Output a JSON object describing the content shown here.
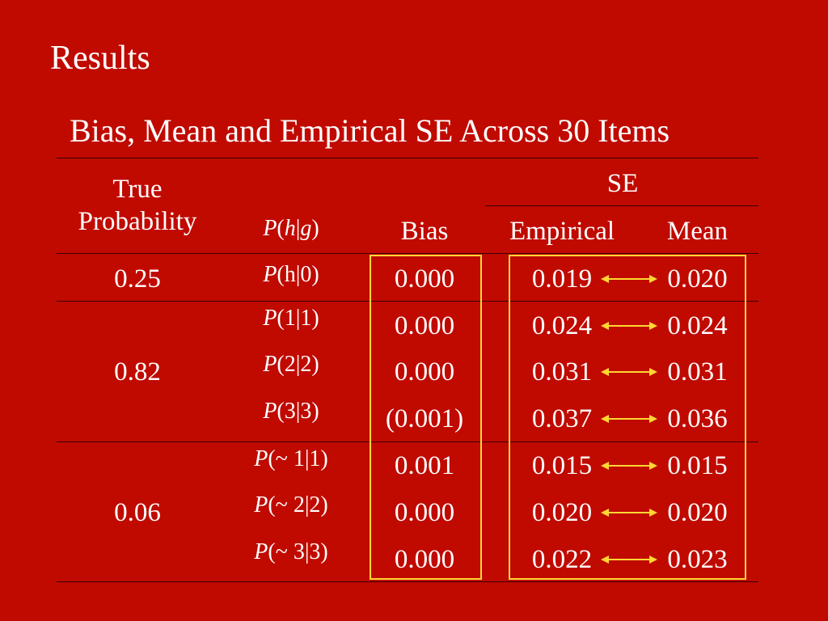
{
  "slide": {
    "title": "Results"
  },
  "table": {
    "caption": "Bias, Mean and Empirical SE Across 30 Items",
    "headers": {
      "true_probability_line1": "True",
      "true_probability_line2": "Probability",
      "p_hg": {
        "p": "P",
        "open": "(",
        "h": "h",
        "bar": "|",
        "g": "g",
        "close": ")"
      },
      "bias": "Bias",
      "se_group": "SE",
      "empirical": "Empirical",
      "mean": "Mean"
    },
    "groups": [
      {
        "true_probability": "0.25"
      },
      {
        "true_probability": "0.82"
      },
      {
        "true_probability": "0.06"
      }
    ],
    "rows": [
      {
        "p_label": "(h|0)",
        "p_italic": "P",
        "bias": "0.000",
        "empirical": "0.019",
        "mean": "0.020"
      },
      {
        "p_label": "(1|1)",
        "p_italic": "P",
        "bias": "0.000",
        "empirical": "0.024",
        "mean": "0.024"
      },
      {
        "p_label": "(2|2)",
        "p_italic": "P",
        "bias": "0.000",
        "empirical": "0.031",
        "mean": "0.031"
      },
      {
        "p_label": "(3|3)",
        "p_italic": "P",
        "bias": "(0.001)",
        "empirical": "0.037",
        "mean": "0.036"
      },
      {
        "p_label": "(~ 1|1)",
        "p_italic": "P",
        "bias": "0.001",
        "empirical": "0.015",
        "mean": "0.015"
      },
      {
        "p_label": "(~ 2|2)",
        "p_italic": "P",
        "bias": "0.000",
        "empirical": "0.020",
        "mean": "0.020"
      },
      {
        "p_label": "(~ 3|3)",
        "p_italic": "P",
        "bias": "0.000",
        "empirical": "0.022",
        "mean": "0.023"
      }
    ]
  },
  "colors": {
    "background": "#c00a00",
    "text": "#ffffff",
    "highlight_box": "#ffd633",
    "arrow": "#ffd633"
  }
}
